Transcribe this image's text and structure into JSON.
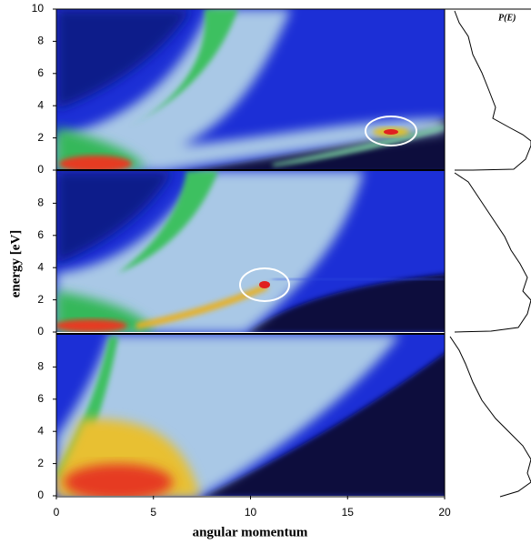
{
  "chart_data": [
    {
      "type": "heatmap",
      "annotation": "P(E)",
      "xlim": [
        0,
        20
      ],
      "ylim": [
        0,
        10
      ],
      "yticks": [
        0,
        2,
        4,
        6,
        8,
        10
      ]
    },
    {
      "type": "heatmap",
      "ylabel": "energy [eV]",
      "xlim": [
        0,
        20
      ],
      "ylim": [
        0,
        10
      ],
      "yticks": [
        0,
        2,
        4,
        6,
        8
      ]
    },
    {
      "type": "heatmap",
      "xlabel": "angular momentum",
      "xlim": [
        0,
        20
      ],
      "ylim": [
        0,
        10
      ],
      "yticks": [
        0,
        2,
        4,
        6,
        8
      ],
      "xticks": [
        0,
        5,
        10,
        15,
        20
      ]
    }
  ]
}
